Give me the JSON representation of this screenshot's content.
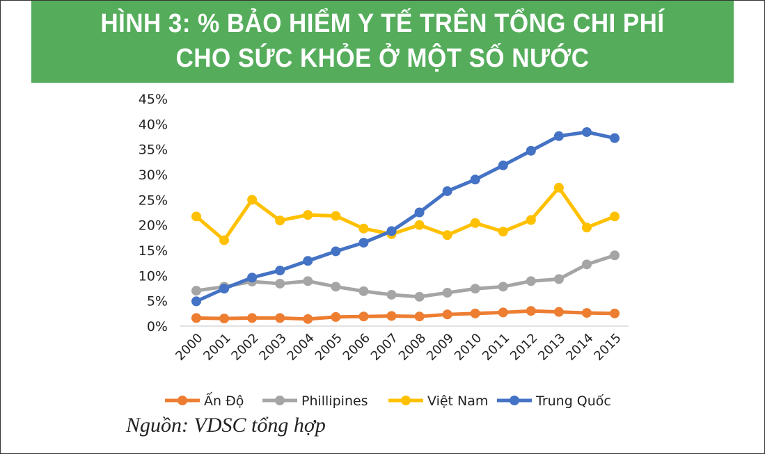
{
  "title_line1": "HÌNH 3: % BẢO HIỂM Y TẾ TRÊN TỔNG CHI PHÍ",
  "title_line2": "CHO SỨC KHỎE Ở MỘT SỐ NƯỚC",
  "source": "Nguồn: VDSC tổng hợp",
  "chart_data": {
    "type": "line",
    "title": "HÌNH 3: % BẢO HIỂM Y TẾ TRÊN TỔNG CHI PHÍ CHO SỨC KHỎE Ở MỘT SỐ NƯỚC",
    "x": [
      "2000",
      "2001",
      "2002",
      "2003",
      "2004",
      "2005",
      "2006",
      "2007",
      "2008",
      "2009",
      "2010",
      "2011",
      "2012",
      "2013",
      "2014",
      "2015"
    ],
    "ylim": [
      0,
      45
    ],
    "yticks": [
      "0%",
      "5%",
      "10%",
      "15%",
      "20%",
      "25%",
      "30%",
      "35%",
      "40%",
      "45%"
    ],
    "grid": false,
    "legend": "bottom",
    "series": [
      {
        "name": "Ấn Độ",
        "color": "#ed7d31",
        "values": [
          1.6,
          1.5,
          1.6,
          1.6,
          1.4,
          1.8,
          1.9,
          2.0,
          1.9,
          2.3,
          2.5,
          2.7,
          3.0,
          2.8,
          2.6,
          2.5
        ]
      },
      {
        "name": "Phillipines",
        "color": "#a5a5a5",
        "values": [
          7.0,
          7.8,
          8.8,
          8.4,
          8.9,
          7.8,
          6.9,
          6.2,
          5.8,
          6.6,
          7.4,
          7.8,
          8.9,
          9.3,
          12.2,
          14.0
        ]
      },
      {
        "name": "Việt Nam",
        "color": "#ffc000",
        "values": [
          21.7,
          17.0,
          25.0,
          20.9,
          22.0,
          21.8,
          19.3,
          18.2,
          20.0,
          18.0,
          20.4,
          18.7,
          21.0,
          27.4,
          19.5,
          21.7
        ]
      },
      {
        "name": "Trung Quốc",
        "color": "#4472c4",
        "values": [
          4.9,
          7.4,
          9.6,
          11.0,
          12.9,
          14.8,
          16.5,
          18.8,
          22.5,
          26.7,
          29.0,
          31.8,
          34.7,
          37.6,
          38.4,
          37.2
        ]
      }
    ]
  }
}
